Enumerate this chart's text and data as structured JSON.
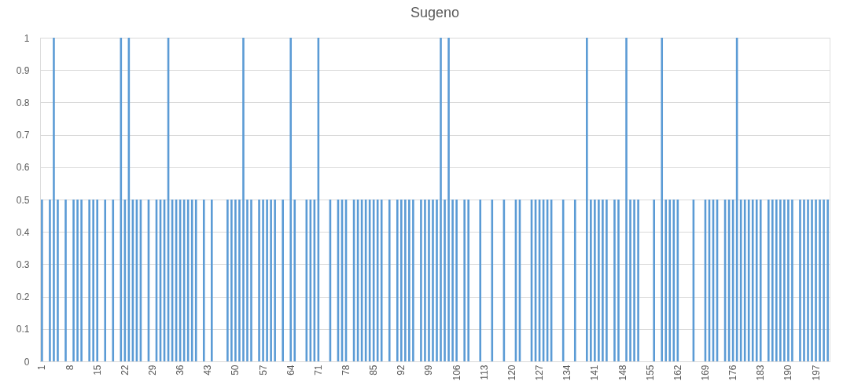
{
  "chart_data": {
    "type": "bar",
    "title": "Sugeno",
    "categories": [
      "1",
      null,
      null,
      null,
      null,
      null,
      null,
      "8",
      null,
      null,
      null,
      null,
      null,
      null,
      "15",
      null,
      null,
      null,
      null,
      null,
      null,
      "22",
      null,
      null,
      null,
      null,
      null,
      null,
      "29",
      null,
      null,
      null,
      null,
      null,
      null,
      "36",
      null,
      null,
      null,
      null,
      null,
      null,
      "43",
      null,
      null,
      null,
      null,
      null,
      null,
      "50",
      null,
      null,
      null,
      null,
      null,
      null,
      "57",
      null,
      null,
      null,
      null,
      null,
      null,
      "64",
      null,
      null,
      null,
      null,
      null,
      null,
      "71",
      null,
      null,
      null,
      null,
      null,
      null,
      "78",
      null,
      null,
      null,
      null,
      null,
      null,
      "85",
      null,
      null,
      null,
      null,
      null,
      null,
      "92",
      null,
      null,
      null,
      null,
      null,
      null,
      "99",
      null,
      null,
      null,
      null,
      null,
      null,
      "106",
      null,
      null,
      null,
      null,
      null,
      null,
      "113",
      null,
      null,
      null,
      null,
      null,
      null,
      "120",
      null,
      null,
      null,
      null,
      null,
      null,
      "127",
      null,
      null,
      null,
      null,
      null,
      null,
      "134",
      null,
      null,
      null,
      null,
      null,
      null,
      "141",
      null,
      null,
      null,
      null,
      null,
      null,
      "148",
      null,
      null,
      null,
      null,
      null,
      null,
      "155",
      null,
      null,
      null,
      null,
      null,
      null,
      "162",
      null,
      null,
      null,
      null,
      null,
      null,
      "169",
      null,
      null,
      null,
      null,
      null,
      null,
      "176",
      null,
      null,
      null,
      null,
      null,
      null,
      "183",
      null,
      null,
      null,
      null,
      null,
      null,
      "190",
      null,
      null,
      null,
      null,
      null,
      null,
      "197",
      null,
      null,
      null
    ],
    "values": [
      0.5,
      0,
      0.5,
      1,
      0.5,
      0,
      0.5,
      0,
      0.5,
      0.5,
      0.5,
      0,
      0.5,
      0.5,
      0.5,
      0,
      0.5,
      0,
      0.5,
      0,
      1,
      0.5,
      1,
      0.5,
      0.5,
      0.5,
      0,
      0.5,
      0,
      0.5,
      0.5,
      0.5,
      1,
      0.5,
      0.5,
      0.5,
      0.5,
      0.5,
      0.5,
      0.5,
      0,
      0.5,
      0,
      0.5,
      0,
      0,
      0,
      0.5,
      0.5,
      0.5,
      0.5,
      1,
      0.5,
      0.5,
      0,
      0.5,
      0.5,
      0.5,
      0.5,
      0.5,
      0,
      0.5,
      0,
      1,
      0.5,
      0,
      0,
      0.5,
      0.5,
      0.5,
      1,
      0,
      0,
      0.5,
      0,
      0.5,
      0.5,
      0.5,
      0,
      0.5,
      0.5,
      0.5,
      0.5,
      0.5,
      0.5,
      0.5,
      0.5,
      0,
      0.5,
      0,
      0.5,
      0.5,
      0.5,
      0.5,
      0.5,
      0,
      0.5,
      0.5,
      0.5,
      0.5,
      0.5,
      1,
      0.5,
      1,
      0.5,
      0.5,
      0,
      0.5,
      0.5,
      0,
      0,
      0.5,
      0,
      0,
      0.5,
      0,
      0,
      0.5,
      0,
      0,
      0.5,
      0.5,
      0,
      0,
      0.5,
      0.5,
      0.5,
      0.5,
      0.5,
      0.5,
      0,
      0,
      0.5,
      0,
      0,
      0.5,
      0,
      0,
      1,
      0.5,
      0.5,
      0.5,
      0.5,
      0.5,
      0,
      0.5,
      0.5,
      0,
      1,
      0.5,
      0.5,
      0.5,
      0,
      0,
      0,
      0.5,
      0,
      1,
      0.5,
      0.5,
      0.5,
      0.5,
      0,
      0,
      0,
      0.5,
      0,
      0,
      0.5,
      0.5,
      0.5,
      0.5,
      0,
      0.5,
      0.5,
      0.5,
      1,
      0.5,
      0.5,
      0.5,
      0.5,
      0.5,
      0.5,
      0,
      0.5,
      0.5,
      0.5,
      0.5,
      0.5,
      0.5,
      0.5,
      0,
      0.5,
      0.5,
      0.5,
      0.5,
      0.5,
      0.5,
      0.5,
      0.5
    ],
    "color": "#5b9bd5",
    "ylim": [
      0,
      1
    ],
    "yticks": [
      0,
      0.1,
      0.2,
      0.3,
      0.4,
      0.5,
      0.6,
      0.7,
      0.8,
      0.9,
      1
    ],
    "grid": "y"
  }
}
